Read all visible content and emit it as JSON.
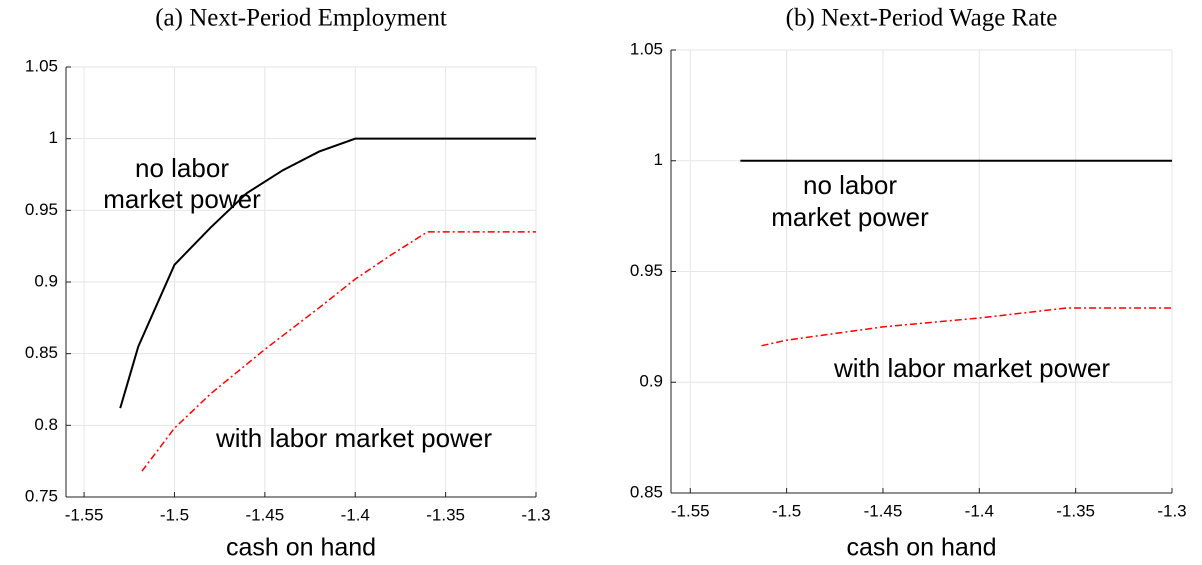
{
  "chart_data": [
    {
      "type": "line",
      "title": "(a) Next-Period Employment",
      "xlabel": "cash on hand",
      "xlim": [
        -1.56,
        -1.3
      ],
      "xticks": [
        -1.55,
        -1.5,
        -1.45,
        -1.4,
        -1.35,
        -1.3
      ],
      "ylim": [
        0.75,
        1.05
      ],
      "yticks": [
        {
          "value": 0.75,
          "label": "0.75"
        },
        {
          "value": 0.8,
          "label": "0.8"
        },
        0.85,
        0.9,
        0.95,
        1,
        1.05
      ],
      "grid": true,
      "series": [
        {
          "name": "no labor market power",
          "color": "#000000",
          "dash": "solid",
          "x": [
            -1.53,
            -1.52,
            -1.5,
            -1.48,
            -1.46,
            -1.44,
            -1.42,
            -1.4,
            -1.3
          ],
          "values": [
            0.812,
            0.855,
            0.912,
            0.938,
            0.962,
            0.978,
            0.991,
            1.0,
            1.0
          ]
        },
        {
          "name": "with labor market power",
          "color": "#ff0000",
          "dash": "dashdot",
          "x": [
            -1.518,
            -1.5,
            -1.48,
            -1.45,
            -1.42,
            -1.4,
            -1.38,
            -1.36,
            -1.3
          ],
          "values": [
            0.768,
            0.798,
            0.822,
            0.853,
            0.882,
            0.902,
            0.919,
            0.935,
            0.935
          ]
        }
      ],
      "annotations": [
        {
          "lines": [
            "no labor",
            "market power"
          ],
          "color": "#000000"
        },
        {
          "lines": [
            "with labor market power"
          ],
          "color": "#ff0000"
        }
      ]
    },
    {
      "type": "line",
      "title": "(b) Next-Period Wage Rate",
      "xlabel": "cash on hand",
      "xlim": [
        -1.56,
        -1.3
      ],
      "xticks": [
        -1.55,
        -1.5,
        -1.45,
        -1.4,
        -1.35,
        -1.3
      ],
      "ylim": [
        0.85,
        1.05
      ],
      "yticks": [
        0.85,
        {
          "value": 0.9,
          "label": "0.9"
        },
        0.95,
        1,
        1.05
      ],
      "grid": true,
      "series": [
        {
          "name": "no labor market power",
          "color": "#000000",
          "dash": "solid",
          "x": [
            -1.524,
            -1.3
          ],
          "values": [
            1.0,
            1.0
          ]
        },
        {
          "name": "with labor market power",
          "color": "#ff0000",
          "dash": "dashdot",
          "x": [
            -1.513,
            -1.5,
            -1.45,
            -1.4,
            -1.355,
            -1.3
          ],
          "values": [
            0.9165,
            0.919,
            0.925,
            0.929,
            0.9335,
            0.9335
          ]
        }
      ],
      "annotations": [
        {
          "lines": [
            "no labor",
            "market power"
          ],
          "color": "#000000"
        },
        {
          "lines": [
            "with labor market power"
          ],
          "color": "#ff0000"
        }
      ]
    }
  ]
}
